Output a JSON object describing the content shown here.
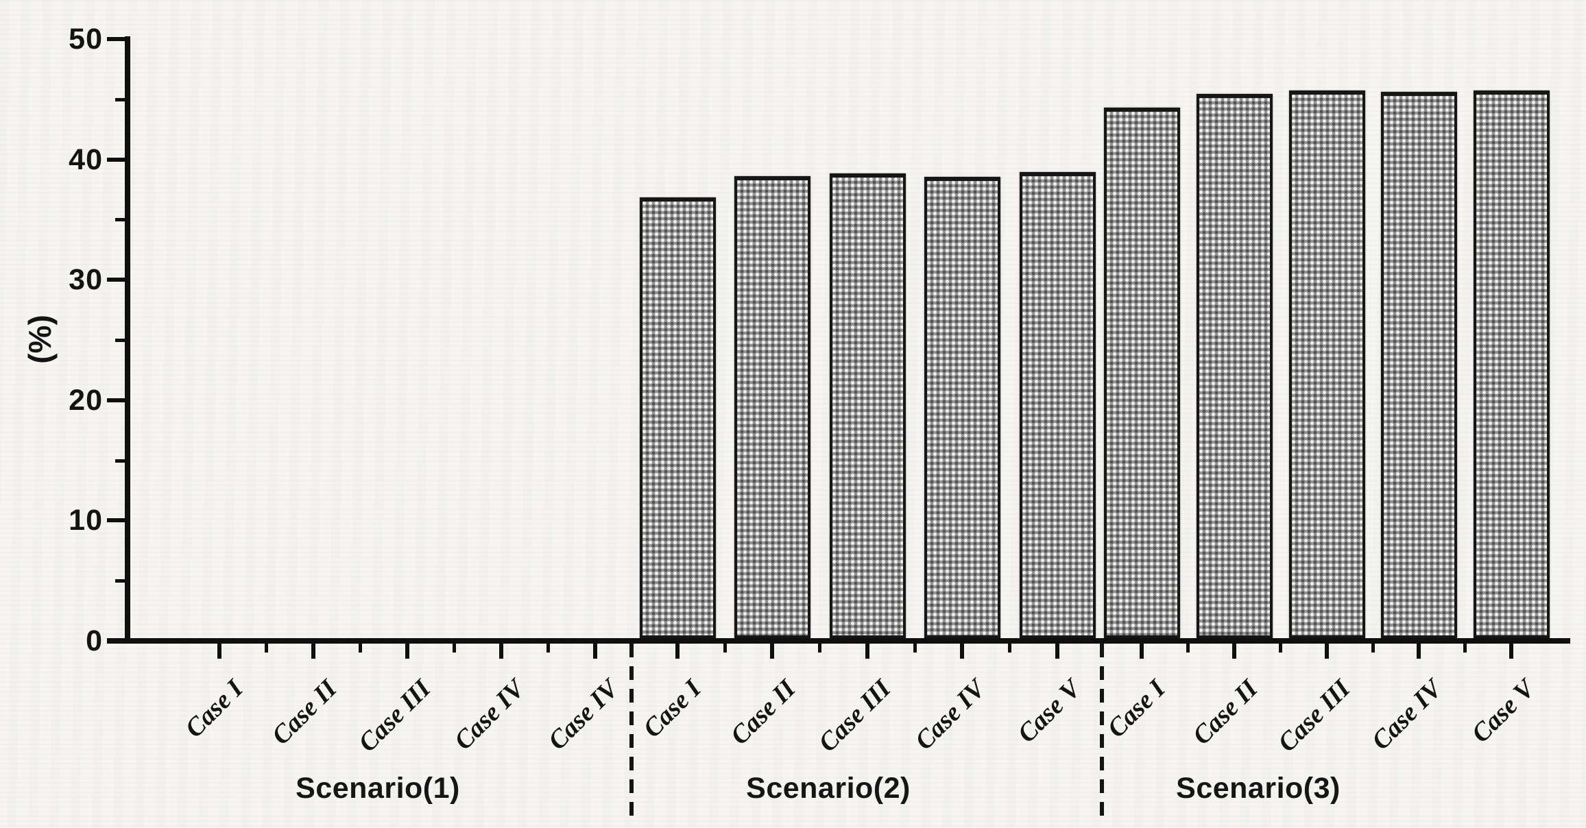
{
  "chart_data": {
    "type": "bar",
    "title": "",
    "xlabel": "",
    "ylabel": "(%)",
    "ylim": [
      0,
      50
    ],
    "yticks_major": [
      0,
      10,
      20,
      30,
      40,
      50
    ],
    "yticks_minor": [
      5,
      15,
      25,
      35,
      45
    ],
    "grid": false,
    "legend": null,
    "separator_style": "dashed-vertical-lines-between-groups",
    "groups": [
      {
        "label": "Scenario(1)",
        "categories": [
          "Case I",
          "Case II",
          "Case III",
          "Case IV",
          "Case IV"
        ],
        "values": [
          0,
          0,
          0,
          0,
          0
        ]
      },
      {
        "label": "Scenario(2)",
        "categories": [
          "Case I",
          "Case II",
          "Case III",
          "Case IV",
          "Case V"
        ],
        "values": [
          36.6,
          38.4,
          38.6,
          38.3,
          38.7
        ]
      },
      {
        "label": "Scenario(3)",
        "categories": [
          "Case I",
          "Case II",
          "Case III",
          "Case IV",
          "Case V"
        ],
        "values": [
          44.1,
          45.2,
          45.5,
          45.4,
          45.5
        ]
      }
    ],
    "colors": {
      "background": "#f6f5f2",
      "bar_fill": "#939393",
      "bar_dot_light": "#f2f2f0",
      "bar_dot_dark": "#4f4f4f",
      "bar_border": "#161616",
      "axis": "#0f0f0f",
      "text": "#141414"
    }
  }
}
